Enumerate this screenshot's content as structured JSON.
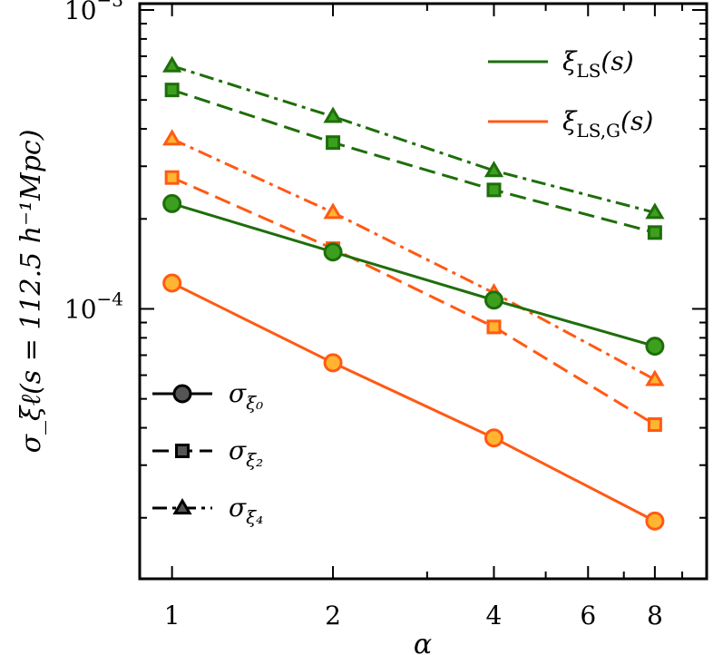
{
  "chart_data": {
    "type": "line",
    "title": "",
    "xlabel": "α",
    "ylabel": "σ_ξℓ(s = 112.5 h⁻¹Mpc)",
    "x_scale": "log",
    "y_scale": "log",
    "xlim": [
      0.87,
      10.0
    ],
    "ylim": [
      1.25e-05,
      0.00105
    ],
    "x": [
      1,
      2,
      4,
      8
    ],
    "x_tick_labels": [
      "1",
      "2",
      "4",
      "6",
      "8"
    ],
    "x_tick_values": [
      1,
      2,
      4,
      6,
      8
    ],
    "y_tick_labels": [
      {
        "value": 0.001,
        "base": "10",
        "exp": "−3"
      },
      {
        "value": 0.0001,
        "base": "10",
        "exp": "−4"
      }
    ],
    "legend_color": [
      {
        "label": "ξ",
        "sub": "LS",
        "tail": "(s)",
        "color": "#1e6e0a"
      },
      {
        "label": "ξ",
        "sub": "LS,G",
        "tail": "(s)",
        "color": "#ff5a14"
      }
    ],
    "legend_style": [
      {
        "label": "σ",
        "sub": "ξ₀",
        "marker": "circle",
        "dash": "solid"
      },
      {
        "label": "σ",
        "sub": "ξ₂",
        "marker": "square",
        "dash": "dashed"
      },
      {
        "label": "σ",
        "sub": "ξ₄",
        "marker": "triangle",
        "dash": "dashdot"
      }
    ],
    "series": [
      {
        "name": "ξLS σξ0",
        "group": "LS",
        "multipole": 0,
        "color": "#1e6e0a",
        "fill": "#3ca01e",
        "marker": "circle",
        "dash": "solid",
        "values": [
          0.000225,
          0.000155,
          0.000107,
          7.5e-05
        ]
      },
      {
        "name": "ξLS σξ2",
        "group": "LS",
        "multipole": 2,
        "color": "#1e6e0a",
        "fill": "#3ca01e",
        "marker": "square",
        "dash": "dashed",
        "values": [
          0.00054,
          0.00036,
          0.00025,
          0.00018
        ]
      },
      {
        "name": "ξLS σξ4",
        "group": "LS",
        "multipole": 4,
        "color": "#1e6e0a",
        "fill": "#3ca01e",
        "marker": "triangle",
        "dash": "dashdot",
        "values": [
          0.00065,
          0.00044,
          0.00029,
          0.00021
        ]
      },
      {
        "name": "ξLS,G σξ0",
        "group": "LS,G",
        "multipole": 0,
        "color": "#ff5a14",
        "fill": "#ffb432",
        "marker": "circle",
        "dash": "solid",
        "values": [
          0.000122,
          6.6e-05,
          3.7e-05,
          1.95e-05
        ]
      },
      {
        "name": "ξLS,G σξ2",
        "group": "LS,G",
        "multipole": 2,
        "color": "#ff5a14",
        "fill": "#ffb432",
        "marker": "square",
        "dash": "dashed",
        "values": [
          0.000275,
          0.000159,
          8.7e-05,
          4.1e-05
        ]
      },
      {
        "name": "ξLS,G σξ4",
        "group": "LS,G",
        "multipole": 4,
        "color": "#ff5a14",
        "fill": "#ffb432",
        "marker": "triangle",
        "dash": "dashdot",
        "values": [
          0.00037,
          0.00021,
          0.000113,
          5.8e-05
        ]
      }
    ]
  }
}
